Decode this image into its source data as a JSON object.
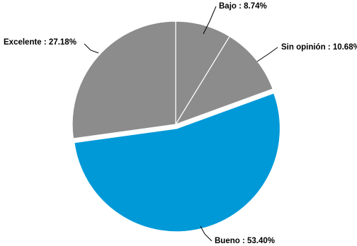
{
  "chart_data": {
    "type": "pie",
    "slices": [
      {
        "label": "Bajo",
        "value": 8.74,
        "display": "Bajo : 8.74%"
      },
      {
        "label": "Sin opinión",
        "value": 10.68,
        "display": "Sin opinión : 10.68%"
      },
      {
        "label": "Bueno",
        "value": 53.4,
        "display": "Bueno : 53.40%",
        "exploded": true
      },
      {
        "label": "Excelente",
        "value": 27.18,
        "display": "Excelente : 27.18%"
      }
    ],
    "start_angle": "12 o'clock",
    "direction": "clockwise",
    "colors": {
      "Bajo": "#8c8c8c",
      "Sin opinión": "#8c8c8c",
      "Bueno": "#0099d8",
      "Excelente": "#8c8c8c"
    },
    "slice_border": "#ffffff"
  }
}
